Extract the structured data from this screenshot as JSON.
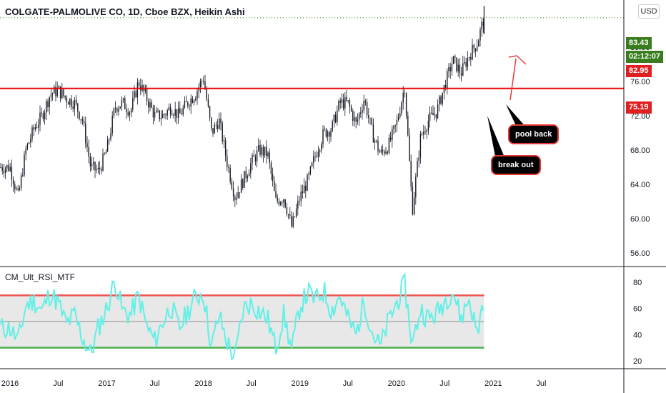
{
  "title": "COLGATE-PALMOLIVE CO, 1D, Cboe BZX, Heikin Ashi",
  "currency": "USD",
  "indicator_title": "CM_Ult_RSI_MTF",
  "price_tags": {
    "last": "83.43",
    "countdown": "02:12:07",
    "prev": "82.95",
    "line": "75.19"
  },
  "annotations": {
    "break_out": "break out",
    "pool_back": "pool back"
  },
  "colors": {
    "candle": "#131722",
    "support_line": "#f20000",
    "rsi_line": "#5ff0e6",
    "rsi_upper": "#ef5350",
    "rsi_lower": "#4caf50",
    "rsi_mid": "#9e9e9e",
    "tag_green": "#3a7d1e",
    "tag_red": "#e02020"
  },
  "chart_data": [
    {
      "type": "candlestick",
      "title": "COLGATE-PALMOLIVE CO, 1D, Cboe BZX, Heikin Ashi",
      "x_ticks": [
        "2016",
        "Jul",
        "2017",
        "Jul",
        "2018",
        "Jul",
        "2019",
        "Jul",
        "2020",
        "Jul",
        "2021",
        "Jul"
      ],
      "y_ticks": [
        "56.00",
        "60.00",
        "64.00",
        "68.00",
        "72.00",
        "76.00",
        "80.00"
      ],
      "ylim": [
        54.5,
        85.5
      ],
      "horizontal_line": 75.19,
      "last_price": 83.43,
      "points": [
        {
          "x": "2016-01",
          "y": 66
        },
        {
          "x": "2016-02",
          "y": 62.5
        },
        {
          "x": "2016-03",
          "y": 68
        },
        {
          "x": "2016-04",
          "y": 70.5
        },
        {
          "x": "2016-05",
          "y": 72
        },
        {
          "x": "2016-06",
          "y": 74.5
        },
        {
          "x": "2016-07",
          "y": 75
        },
        {
          "x": "2016-08",
          "y": 74
        },
        {
          "x": "2016-09",
          "y": 73.5
        },
        {
          "x": "2016-10",
          "y": 71.5
        },
        {
          "x": "2016-11",
          "y": 66
        },
        {
          "x": "2016-12",
          "y": 65.5
        },
        {
          "x": "2017-01",
          "y": 68
        },
        {
          "x": "2017-02",
          "y": 73
        },
        {
          "x": "2017-03",
          "y": 73.5
        },
        {
          "x": "2017-04",
          "y": 72.5
        },
        {
          "x": "2017-05",
          "y": 76
        },
        {
          "x": "2017-06",
          "y": 74
        },
        {
          "x": "2017-07",
          "y": 72
        },
        {
          "x": "2017-08",
          "y": 72
        },
        {
          "x": "2017-09",
          "y": 73
        },
        {
          "x": "2017-10",
          "y": 72
        },
        {
          "x": "2017-11",
          "y": 73.5
        },
        {
          "x": "2017-12",
          "y": 74.5
        },
        {
          "x": "2018-01",
          "y": 76.5
        },
        {
          "x": "2018-02",
          "y": 70
        },
        {
          "x": "2018-03",
          "y": 71.5
        },
        {
          "x": "2018-04",
          "y": 66.5
        },
        {
          "x": "2018-05",
          "y": 62.5
        },
        {
          "x": "2018-06",
          "y": 64.5
        },
        {
          "x": "2018-07",
          "y": 66.5
        },
        {
          "x": "2018-08",
          "y": 68
        },
        {
          "x": "2018-09",
          "y": 67.5
        },
        {
          "x": "2018-10",
          "y": 62
        },
        {
          "x": "2018-11",
          "y": 62.5
        },
        {
          "x": "2018-12",
          "y": 59
        },
        {
          "x": "2019-01",
          "y": 62.5
        },
        {
          "x": "2019-02",
          "y": 64.5
        },
        {
          "x": "2019-03",
          "y": 67.5
        },
        {
          "x": "2019-04",
          "y": 70
        },
        {
          "x": "2019-05",
          "y": 70.5
        },
        {
          "x": "2019-06",
          "y": 73.5
        },
        {
          "x": "2019-07",
          "y": 73.5
        },
        {
          "x": "2019-08",
          "y": 71
        },
        {
          "x": "2019-09",
          "y": 74
        },
        {
          "x": "2019-10",
          "y": 70
        },
        {
          "x": "2019-11",
          "y": 67.5
        },
        {
          "x": "2019-12",
          "y": 68.5
        },
        {
          "x": "2020-01",
          "y": 71
        },
        {
          "x": "2020-02",
          "y": 75.5
        },
        {
          "x": "2020-03",
          "y": 61
        },
        {
          "x": "2020-04",
          "y": 69.5
        },
        {
          "x": "2020-05",
          "y": 71.5
        },
        {
          "x": "2020-06",
          "y": 72.5
        },
        {
          "x": "2020-07",
          "y": 75.5
        },
        {
          "x": "2020-08",
          "y": 78.5
        },
        {
          "x": "2020-09",
          "y": 77
        },
        {
          "x": "2020-10",
          "y": 79
        },
        {
          "x": "2020-11",
          "y": 80.5
        },
        {
          "x": "2020-11-27",
          "y": 83.43
        }
      ]
    },
    {
      "type": "line",
      "title": "CM_Ult_RSI_MTF",
      "y_ticks": [
        "20",
        "40",
        "60",
        "80"
      ],
      "ylim": [
        14,
        92
      ],
      "upper_band": 70,
      "lower_band": 30,
      "mid_line": 50,
      "points": [
        {
          "x": "2016-01",
          "y": 45
        },
        {
          "x": "2016-02",
          "y": 35
        },
        {
          "x": "2016-03",
          "y": 62
        },
        {
          "x": "2016-04",
          "y": 66
        },
        {
          "x": "2016-05",
          "y": 58
        },
        {
          "x": "2016-06",
          "y": 72
        },
        {
          "x": "2016-07",
          "y": 64
        },
        {
          "x": "2016-08",
          "y": 48
        },
        {
          "x": "2016-09",
          "y": 55
        },
        {
          "x": "2016-10",
          "y": 38
        },
        {
          "x": "2016-11",
          "y": 25
        },
        {
          "x": "2016-12",
          "y": 46
        },
        {
          "x": "2017-01",
          "y": 60
        },
        {
          "x": "2017-02",
          "y": 82
        },
        {
          "x": "2017-03",
          "y": 58
        },
        {
          "x": "2017-04",
          "y": 55
        },
        {
          "x": "2017-05",
          "y": 70
        },
        {
          "x": "2017-06",
          "y": 46
        },
        {
          "x": "2017-07",
          "y": 35
        },
        {
          "x": "2017-08",
          "y": 50
        },
        {
          "x": "2017-09",
          "y": 62
        },
        {
          "x": "2017-10",
          "y": 44
        },
        {
          "x": "2017-11",
          "y": 57
        },
        {
          "x": "2017-12",
          "y": 68
        },
        {
          "x": "2018-01",
          "y": 72
        },
        {
          "x": "2018-02",
          "y": 30
        },
        {
          "x": "2018-03",
          "y": 55
        },
        {
          "x": "2018-04",
          "y": 34
        },
        {
          "x": "2018-05",
          "y": 22
        },
        {
          "x": "2018-06",
          "y": 60
        },
        {
          "x": "2018-07",
          "y": 64
        },
        {
          "x": "2018-08",
          "y": 58
        },
        {
          "x": "2018-09",
          "y": 52
        },
        {
          "x": "2018-10",
          "y": 30
        },
        {
          "x": "2018-11",
          "y": 55
        },
        {
          "x": "2018-12",
          "y": 28
        },
        {
          "x": "2019-01",
          "y": 62
        },
        {
          "x": "2019-02",
          "y": 72
        },
        {
          "x": "2019-03",
          "y": 66
        },
        {
          "x": "2019-04",
          "y": 74
        },
        {
          "x": "2019-05",
          "y": 58
        },
        {
          "x": "2019-06",
          "y": 70
        },
        {
          "x": "2019-07",
          "y": 52
        },
        {
          "x": "2019-08",
          "y": 40
        },
        {
          "x": "2019-09",
          "y": 66
        },
        {
          "x": "2019-10",
          "y": 42
        },
        {
          "x": "2019-11",
          "y": 30
        },
        {
          "x": "2019-12",
          "y": 50
        },
        {
          "x": "2020-01",
          "y": 64
        },
        {
          "x": "2020-02",
          "y": 78
        },
        {
          "x": "2020-03",
          "y": 32
        },
        {
          "x": "2020-04",
          "y": 60
        },
        {
          "x": "2020-05",
          "y": 52
        },
        {
          "x": "2020-06",
          "y": 56
        },
        {
          "x": "2020-07",
          "y": 66
        },
        {
          "x": "2020-08",
          "y": 74
        },
        {
          "x": "2020-09",
          "y": 52
        },
        {
          "x": "2020-10",
          "y": 68
        },
        {
          "x": "2020-11",
          "y": 40
        },
        {
          "x": "2020-11-27",
          "y": 70
        }
      ]
    }
  ]
}
